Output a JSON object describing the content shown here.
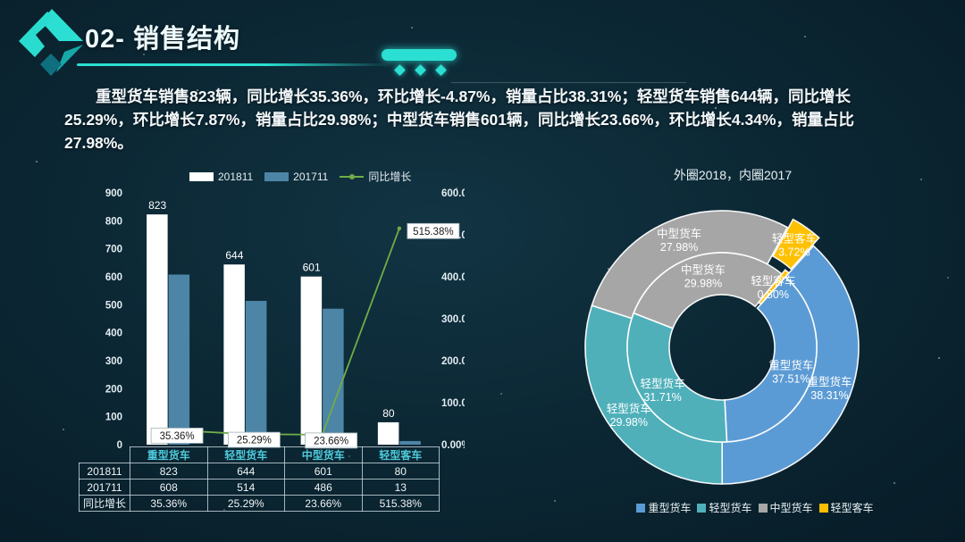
{
  "slide": {
    "title": "02- 销售结构"
  },
  "intro": {
    "text": "重型货车销售823辆，同比增长35.36%，环比增长-4.87%，销量占比38.31%；轻型货车销售644辆，同比增长25.29%，环比增长7.87%，销量占比29.98%；中型货车销售601辆，同比增长23.66%，环比增长4.34%，销量占比27.98%。"
  },
  "colors": {
    "background": "#0c2835",
    "accent": "#2be0d2",
    "bar_2018": "#ffffff",
    "bar_2017": "#4d85a6",
    "growth_line": "#70ad47",
    "table_header_text": "#4ecadb",
    "axis_text": "#e3edf2",
    "donut": [
      "#5b9bd5",
      "#4fb0ba",
      "#a6a6a6",
      "#ffc000"
    ]
  },
  "chart_data": [
    {
      "type": "bar",
      "subtype": "bar-line-combo",
      "categories": [
        "重型货车",
        "轻型货车",
        "中型货车",
        "轻型客车"
      ],
      "series": [
        {
          "name": "201811",
          "kind": "bar",
          "color": "#ffffff",
          "values": [
            823,
            644,
            601,
            80
          ]
        },
        {
          "name": "201711",
          "kind": "bar",
          "color": "#4d85a6",
          "values": [
            608,
            514,
            486,
            13
          ]
        },
        {
          "name": "同比增长",
          "kind": "line",
          "color": "#70ad47",
          "values_pct": [
            35.36,
            25.29,
            23.66,
            515.38
          ]
        }
      ],
      "bar_labels": [
        "823",
        "644",
        "601",
        "80"
      ],
      "point_labels": [
        "35.36%",
        "25.29%",
        "23.66%",
        "515.38%"
      ],
      "left_axis": {
        "min": 0,
        "max": 900,
        "step": 100
      },
      "right_axis": {
        "min": 0,
        "max": 600,
        "step": 100,
        "format": "percent2"
      },
      "grid": false,
      "legend_position": "top"
    },
    {
      "type": "pie",
      "subtype": "nested-donut",
      "title": "外圈2018，内圈2017",
      "categories": [
        "重型货车",
        "轻型货车",
        "中型货车",
        "轻型客车"
      ],
      "colors": [
        "#5b9bd5",
        "#4fb0ba",
        "#a6a6a6",
        "#ffc000"
      ],
      "rings": [
        {
          "name": "2018",
          "position": "outer",
          "values_pct": [
            38.31,
            29.98,
            27.98,
            3.72
          ]
        },
        {
          "name": "2017",
          "position": "inner",
          "values_pct": [
            37.51,
            31.71,
            29.98,
            0.8
          ]
        }
      ],
      "legend_position": "bottom"
    }
  ],
  "table": {
    "columns": [
      "",
      "重型货车",
      "轻型货车",
      "中型货车",
      "轻型客车"
    ],
    "rows": [
      {
        "label": "201811",
        "cells": [
          "823",
          "644",
          "601",
          "80"
        ]
      },
      {
        "label": "201711",
        "cells": [
          "608",
          "514",
          "486",
          "13"
        ]
      },
      {
        "label": "同比增长",
        "cells": [
          "35.36%",
          "25.29%",
          "23.66%",
          "515.38%"
        ]
      }
    ]
  }
}
